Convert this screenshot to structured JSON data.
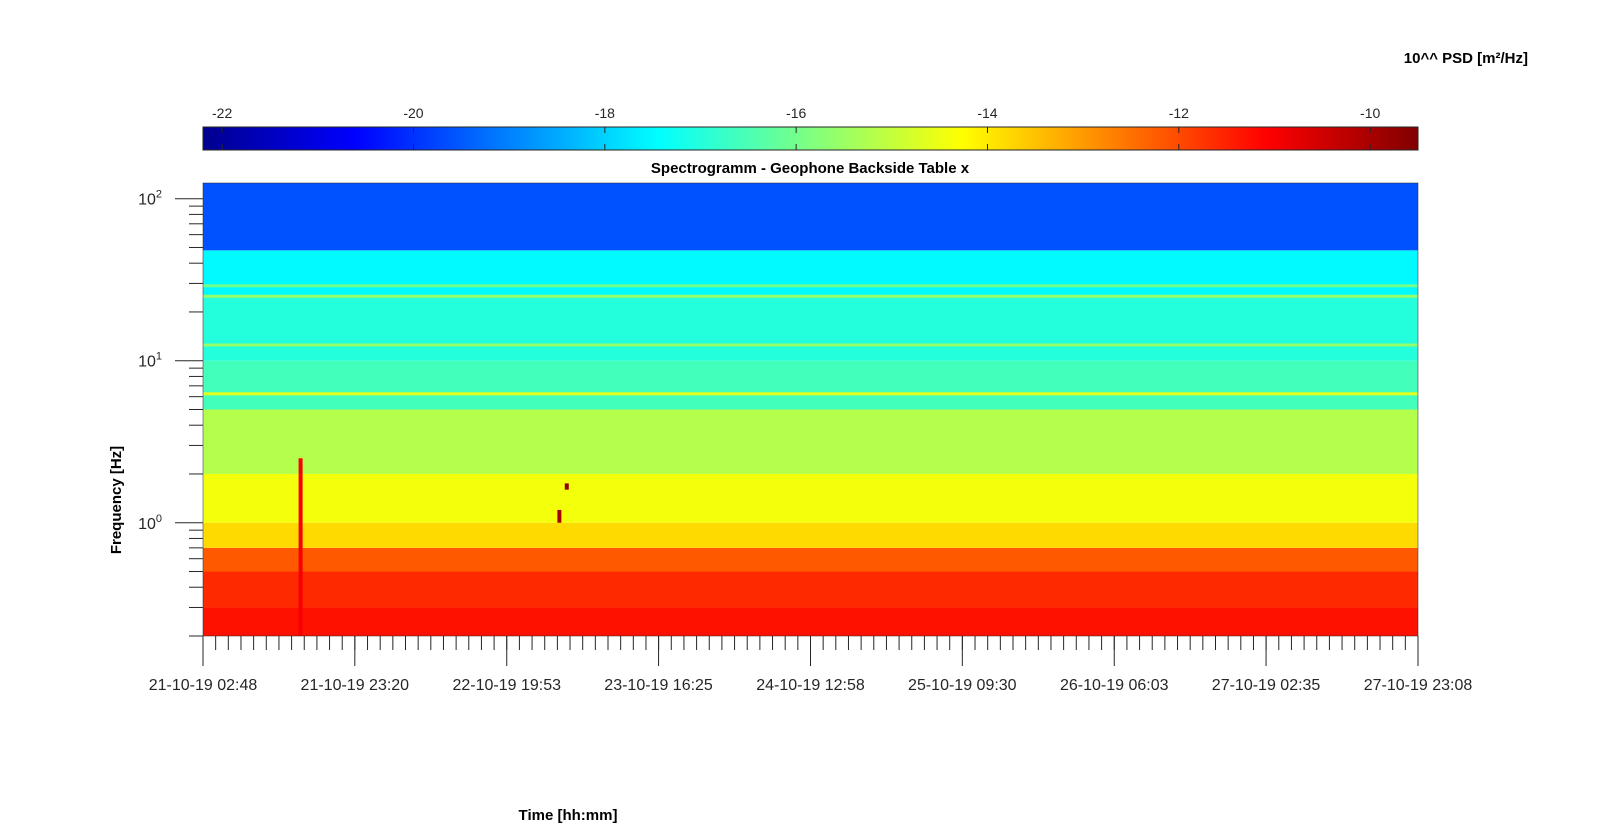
{
  "chart_data": {
    "type": "heatmap",
    "title": "Spectrogramm - Geophone Backside Table x",
    "xlabel": "Time [hh:mm]",
    "ylabel": "Frequency [Hz]",
    "colorbar_label": "10^^ PSD [m²/Hz]",
    "colormap": "jet",
    "clim": [
      -22.2,
      -9.5
    ],
    "colorbar_ticks": [
      -22,
      -20,
      -18,
      -16,
      -14,
      -12,
      -10
    ],
    "colorbar_tick_labels": [
      "-22",
      "-20",
      "-18",
      "-16",
      "-14",
      "-12",
      "-10"
    ],
    "y_scale": "log",
    "ylim": [
      0.2,
      125
    ],
    "y_ticks": [
      {
        "value": 1,
        "base": "10",
        "exp": "0"
      },
      {
        "value": 10,
        "base": "10",
        "exp": "1"
      },
      {
        "value": 100,
        "base": "10",
        "exp": "2"
      }
    ],
    "x_tick_labels": [
      "21-10-19 02:48",
      "21-10-19 23:20",
      "22-10-19 19:53",
      "23-10-19 16:25",
      "24-10-19 12:58",
      "25-10-19 09:30",
      "26-10-19 06:03",
      "27-10-19 02:35",
      "27-10-19 23:08"
    ],
    "xlim": [
      "21-10-19 02:48",
      "27-10-19 23:08"
    ],
    "bands": [
      {
        "f": [
          0.2,
          0.3
        ],
        "level": -11.3
      },
      {
        "f": [
          0.3,
          0.5
        ],
        "level": -11.6
      },
      {
        "f": [
          0.5,
          0.7
        ],
        "level": -12.2
      },
      {
        "f": [
          0.7,
          1.0
        ],
        "level": -13.8
      },
      {
        "f": [
          1.0,
          2.0
        ],
        "level": -14.4
      },
      {
        "f": [
          2.0,
          5.0
        ],
        "level": -15.2
      },
      {
        "f": [
          5.0,
          10.0
        ],
        "level": -16.6
      },
      {
        "f": [
          10.0,
          25.0
        ],
        "level": -17.0
      },
      {
        "f": [
          25.0,
          48.0
        ],
        "level": -17.5
      },
      {
        "f": [
          48.0,
          125.0
        ],
        "level": -19.6
      }
    ],
    "lines": [
      {
        "f": 6.25,
        "level": -14.6
      },
      {
        "f": 12.5,
        "level": -15.6
      },
      {
        "f": 25.0,
        "level": -15.6
      },
      {
        "f": 29.0,
        "level": -16.0
      }
    ],
    "events": [
      {
        "t": "21-10-19 16:00",
        "f": [
          0.2,
          2.5
        ],
        "level": -11.0
      },
      {
        "t": "23-10-19 04:00",
        "f": [
          1.6,
          1.75
        ],
        "level": -9.8
      },
      {
        "t": "23-10-19 03:00",
        "f": [
          1.0,
          1.2
        ],
        "level": -10.0
      }
    ]
  }
}
